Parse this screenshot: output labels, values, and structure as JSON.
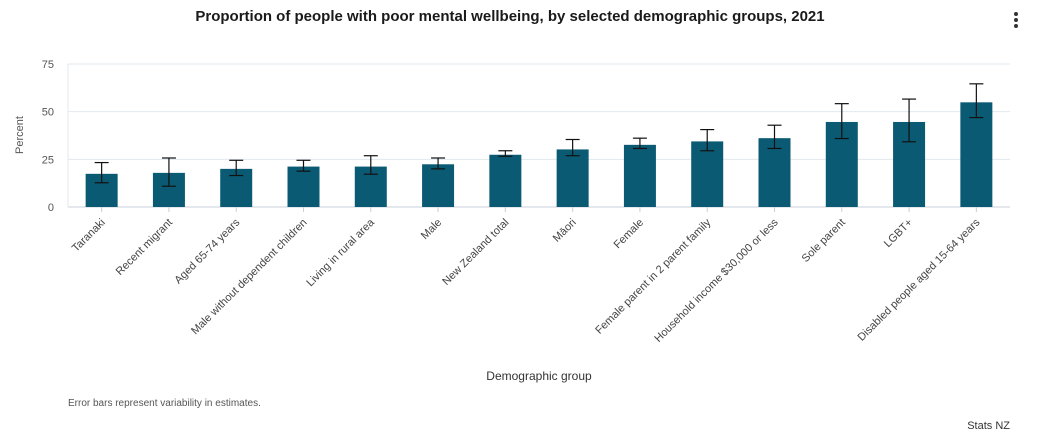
{
  "chart_data": {
    "type": "bar",
    "title": "Proportion of people with poor mental wellbeing, by selected demographic groups, 2021",
    "xlabel": "Demographic group",
    "ylabel": "Percent",
    "ylim": [
      0,
      75
    ],
    "yticks": [
      0,
      25,
      50,
      75
    ],
    "grid": true,
    "bar_color": "#0b5a73",
    "categories": [
      "Taranaki",
      "Recent migrant",
      "Aged 65-74 years",
      "Male without dependent children",
      "Living in rural area",
      "Male",
      "New Zealand total",
      "Māori",
      "Female",
      "Female parent in 2 parent family",
      "Household income $30,000 or less",
      "Sole parent",
      "LGBT+",
      "Disabled people aged 15-64 years"
    ],
    "values": [
      17.4,
      17.9,
      20.0,
      21.2,
      21.2,
      22.4,
      27.4,
      30.2,
      32.6,
      34.4,
      36.1,
      44.6,
      44.6,
      54.9
    ],
    "error_low": [
      12.7,
      10.9,
      16.5,
      18.8,
      17.2,
      20.0,
      26.6,
      26.9,
      30.7,
      29.5,
      30.7,
      35.9,
      34.2,
      46.9
    ],
    "error_high": [
      23.3,
      25.7,
      24.5,
      24.5,
      26.9,
      25.7,
      29.5,
      35.4,
      36.1,
      40.6,
      42.9,
      54.2,
      56.6,
      64.6
    ]
  },
  "note": "Error bars represent variability in estimates.",
  "source": "Stats NZ"
}
